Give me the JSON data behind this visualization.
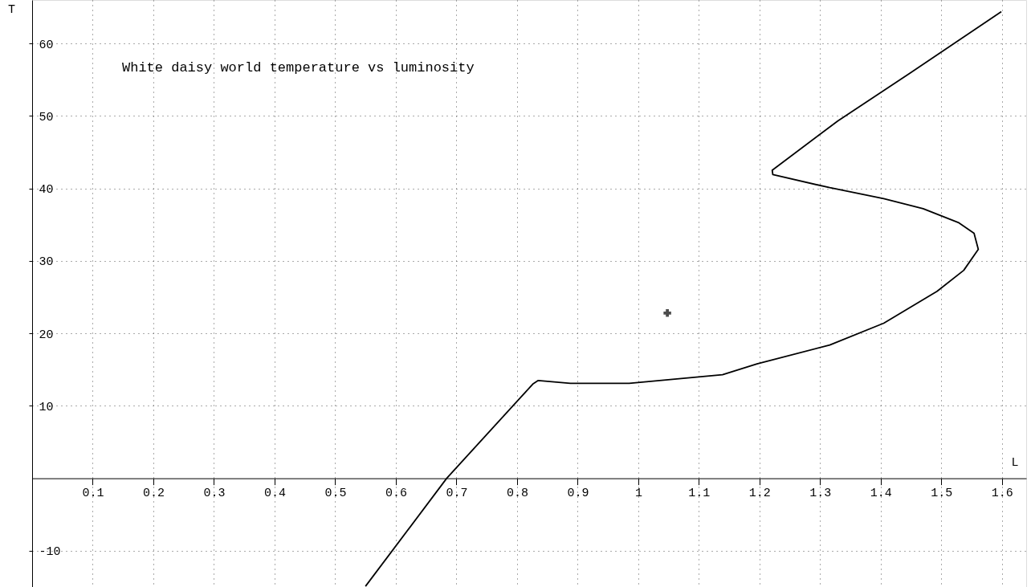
{
  "chart_data": {
    "type": "line",
    "title": "White daisy world temperature vs luminosity",
    "xlabel": "L",
    "ylabel": "T",
    "xlim": [
      0,
      1.64
    ],
    "ylim": [
      -15,
      66
    ],
    "xticks": [
      0.1,
      0.2,
      0.3,
      0.4,
      0.5,
      0.6,
      0.7,
      0.8,
      0.9,
      1,
      1.1,
      1.2,
      1.3,
      1.4,
      1.5,
      1.6
    ],
    "yticks": [
      -10,
      10,
      20,
      30,
      40,
      50,
      60
    ],
    "grid": true,
    "series": [
      {
        "color": "#000000",
        "marker": "none",
        "line_style": "solid",
        "x": [
          0.55,
          0.684,
          0.826,
          0.835,
          0.888,
          0.985,
          1.139,
          1.196,
          1.316,
          1.405,
          1.493,
          1.537,
          1.561,
          1.554,
          1.528,
          1.47,
          1.405,
          1.316,
          1.222,
          1.221,
          1.329,
          1.448,
          1.599
        ],
        "values": [
          -14.9,
          0,
          13.0,
          13.5,
          13.1,
          13.1,
          14.3,
          15.8,
          18.4,
          21.4,
          25.8,
          28.7,
          31.6,
          33.8,
          35.3,
          37.2,
          38.6,
          40.1,
          41.9,
          42.5,
          49.3,
          55.9,
          64.4
        ]
      },
      {
        "type": "scatter",
        "color": "#000000",
        "marker": "cross",
        "x": [
          1.048
        ],
        "values": [
          22.8
        ]
      }
    ]
  }
}
